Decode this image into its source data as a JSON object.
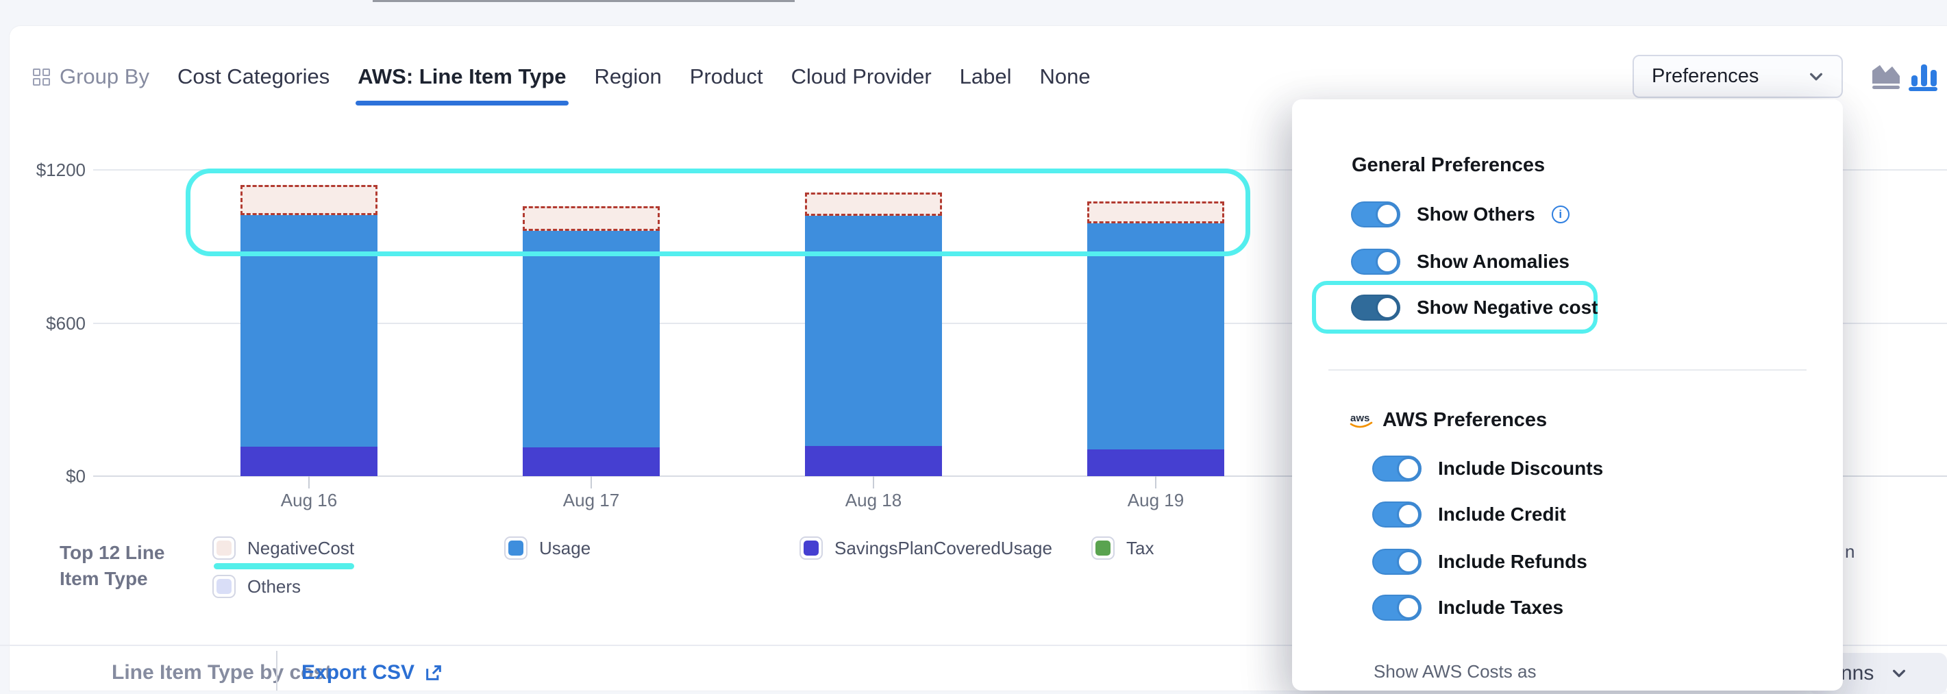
{
  "toolbar": {
    "group_by_label": "Group By",
    "tabs": [
      {
        "label": "Cost Categories",
        "active": false
      },
      {
        "label": "AWS: Line Item Type",
        "active": true
      },
      {
        "label": "Region",
        "active": false
      },
      {
        "label": "Product",
        "active": false
      },
      {
        "label": "Cloud Provider",
        "active": false
      },
      {
        "label": "Label",
        "active": false
      },
      {
        "label": "None",
        "active": false
      }
    ],
    "preferences_button_label": "Preferences"
  },
  "chart_data": {
    "type": "bar",
    "stacked": true,
    "categories": [
      "Aug 16",
      "Aug 17",
      "Aug 18",
      "Aug 19"
    ],
    "series": [
      {
        "name": "SavingsPlanCoveredUsage",
        "color": "#453fd1",
        "values": [
          115,
          114,
          118,
          105
        ]
      },
      {
        "name": "Usage",
        "color": "#3e8edd",
        "values": [
          908,
          847,
          902,
          886
        ]
      },
      {
        "name": "Tax",
        "color": "#57a555",
        "values": [
          0,
          0,
          0,
          0
        ]
      },
      {
        "name": "NegativeCost",
        "color": "#f8ece8",
        "style": "dashed-overlay",
        "border_color": "#b23b31",
        "values": [
          118,
          97,
          91,
          86
        ]
      }
    ],
    "yticks": [
      {
        "label": "$0",
        "value": 0
      },
      {
        "label": "$600",
        "value": 600
      },
      {
        "label": "$1200",
        "value": 1200
      }
    ],
    "ylim": [
      0,
      1200
    ],
    "grid": true,
    "legend_position": "bottom",
    "annotation": "cyan highlight box around dashed negative-cost tops of all four bars"
  },
  "legend": {
    "title": "Top 12 Line Item Type",
    "items": [
      {
        "label": "NegativeCost",
        "swatch": "#f6e9e5",
        "highlighted": true
      },
      {
        "label": "Usage",
        "swatch": "#3e8edd",
        "highlighted": false
      },
      {
        "label": "SavingsPlanCoveredUsage",
        "swatch": "#453fd1",
        "highlighted": false
      },
      {
        "label": "Tax",
        "swatch": "#5aa350",
        "highlighted": false
      },
      {
        "label": "Others",
        "swatch": "#d9def7",
        "highlighted": false
      }
    ]
  },
  "preferences_panel": {
    "general": {
      "title": "General Preferences",
      "toggles": [
        {
          "label": "Show Others",
          "state": "on",
          "info": true
        },
        {
          "label": "Show Anomalies",
          "state": "on"
        },
        {
          "label": "Show Negative cost",
          "state": "on",
          "highlighted": true
        }
      ]
    },
    "aws": {
      "title": "AWS Preferences",
      "logo": "aws",
      "toggles": [
        {
          "label": "Include Discounts",
          "state": "on"
        },
        {
          "label": "Include Credit",
          "state": "on"
        },
        {
          "label": "Include Refunds",
          "state": "on"
        },
        {
          "label": "Include Taxes",
          "state": "on"
        }
      ]
    },
    "footer_label": "Show AWS Costs as"
  },
  "bottom_bar": {
    "section_title": "Line Item Type by cost",
    "export_label": "Export CSV"
  },
  "fragments": {
    "clipped_text": "n",
    "clipped_dropdown_text": "nns"
  },
  "colors": {
    "accent_blue": "#2d72da",
    "bar_usage": "#3e8edd",
    "bar_savings_plan": "#453fd1",
    "negative_dashed_border": "#b23b31",
    "negative_fill": "#f8ece8",
    "highlight_cyan": "#54efef",
    "toggle_on": "#4596e2",
    "toggle_on_dark": "#306b9a",
    "export_link": "#2b6fd3"
  }
}
